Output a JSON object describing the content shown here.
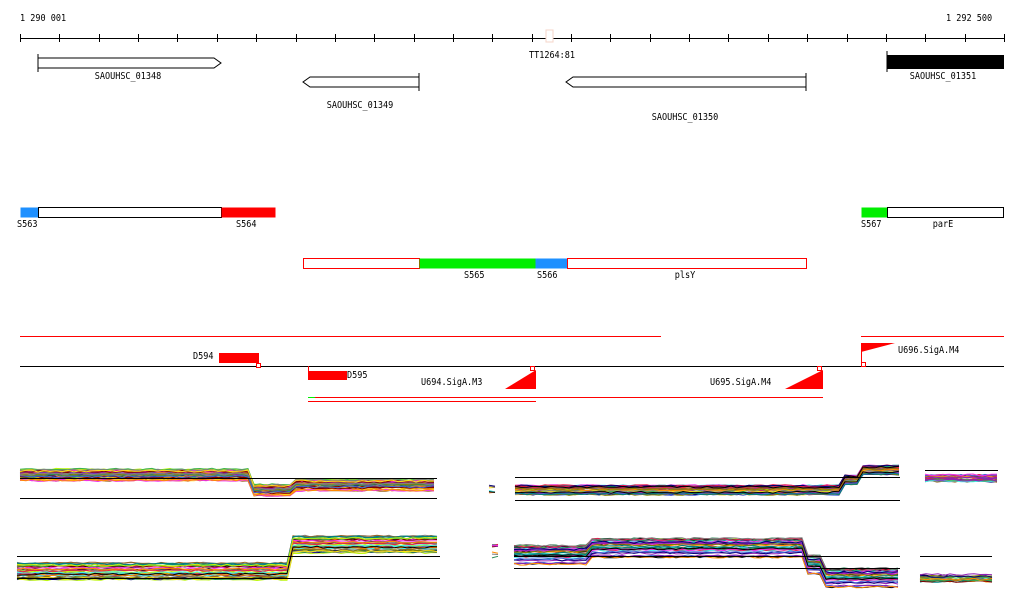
{
  "ruler": {
    "start_label": "1 290 001",
    "end_label": "1 292 500",
    "marker_label": "TT1264:81"
  },
  "genes": [
    {
      "name": "SAOUHSC_01348",
      "strand": "+"
    },
    {
      "name": "SAOUHSC_01349",
      "strand": "-"
    },
    {
      "name": "SAOUHSC_01350",
      "strand": "-"
    },
    {
      "name": "SAOUHSC_01351",
      "strand": "+"
    }
  ],
  "segments": {
    "S563": "S563",
    "S564": "S564",
    "S565": "S565",
    "S566": "S566",
    "S567": "S567",
    "parE": "parE",
    "plsY": "plsY"
  },
  "features": {
    "D594": "D594",
    "D595": "D595",
    "U694": "U694.SigA.M3",
    "U695": "U695.SigA.M4",
    "U696": "U696.SigA.M4"
  },
  "colors": {
    "red": "#ff0000",
    "green": "#00ee00",
    "blue": "#1e90ff",
    "black": "#000000"
  }
}
